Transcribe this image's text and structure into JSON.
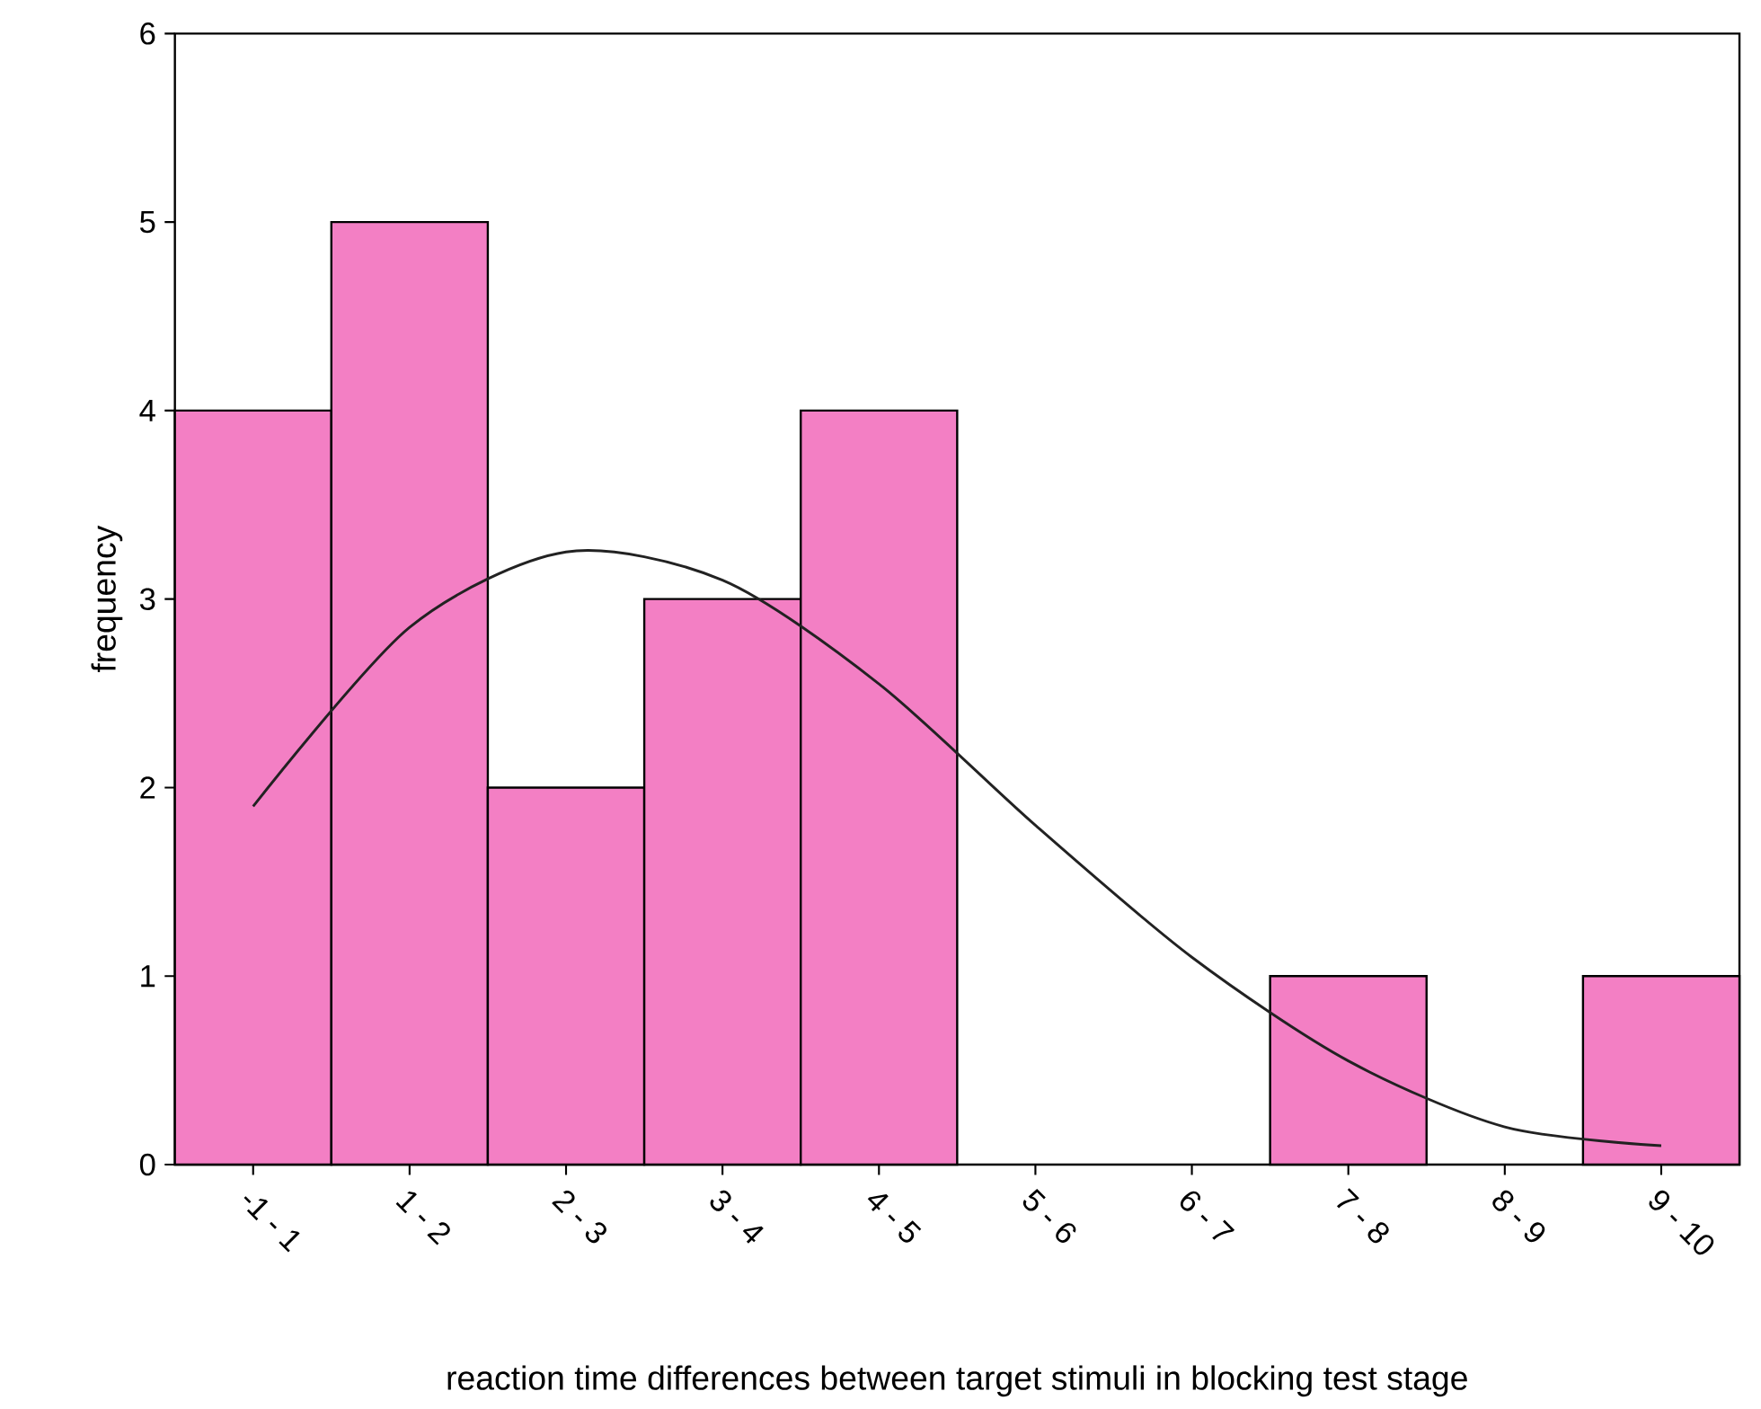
{
  "chart_data": {
    "type": "bar",
    "xlabel": "reaction time differences between target stimuli in blocking test stage",
    "ylabel": "frequency",
    "categories": [
      "-1 - 1",
      "1 - 2",
      "2 - 3",
      "3 - 4",
      "4 - 5",
      "5 - 6",
      "6 - 7",
      "7 - 8",
      "8 - 9",
      "9 - 10"
    ],
    "series": [
      {
        "color": "#f37fc4",
        "values": [
          4,
          5,
          2,
          3,
          4,
          0,
          0,
          1,
          0,
          1
        ]
      },
      {
        "type": "line",
        "color": "#222222",
        "values": [
          1.9,
          2.85,
          3.25,
          3.1,
          2.55,
          1.8,
          1.1,
          0.55,
          0.2,
          0.1
        ]
      }
    ],
    "ylim": [
      0,
      6
    ],
    "yticks": [
      0,
      1,
      2,
      3,
      4,
      5,
      6
    ],
    "marker": "none"
  }
}
